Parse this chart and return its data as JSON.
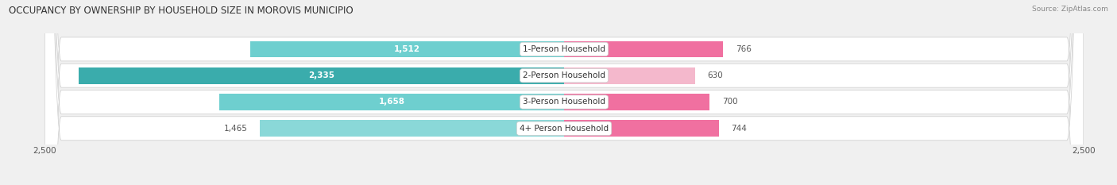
{
  "title": "OCCUPANCY BY OWNERSHIP BY HOUSEHOLD SIZE IN MOROVIS MUNICIPIO",
  "source": "Source: ZipAtlas.com",
  "categories": [
    "1-Person Household",
    "2-Person Household",
    "3-Person Household",
    "4+ Person Household"
  ],
  "owner_values": [
    1512,
    2335,
    1658,
    1465
  ],
  "renter_values": [
    766,
    630,
    700,
    744
  ],
  "owner_colors": [
    "#6ECFCF",
    "#3AACAC",
    "#6ECFCF",
    "#8AD8D8"
  ],
  "renter_colors": [
    "#F070A0",
    "#F4B8CC",
    "#F070A0",
    "#F070A0"
  ],
  "axis_max": 2500,
  "bg_color": "#f0f0f0",
  "title_fontsize": 8.5,
  "bar_label_fontsize": 7.5,
  "tick_fontsize": 7.5,
  "cat_fontsize": 7.5
}
